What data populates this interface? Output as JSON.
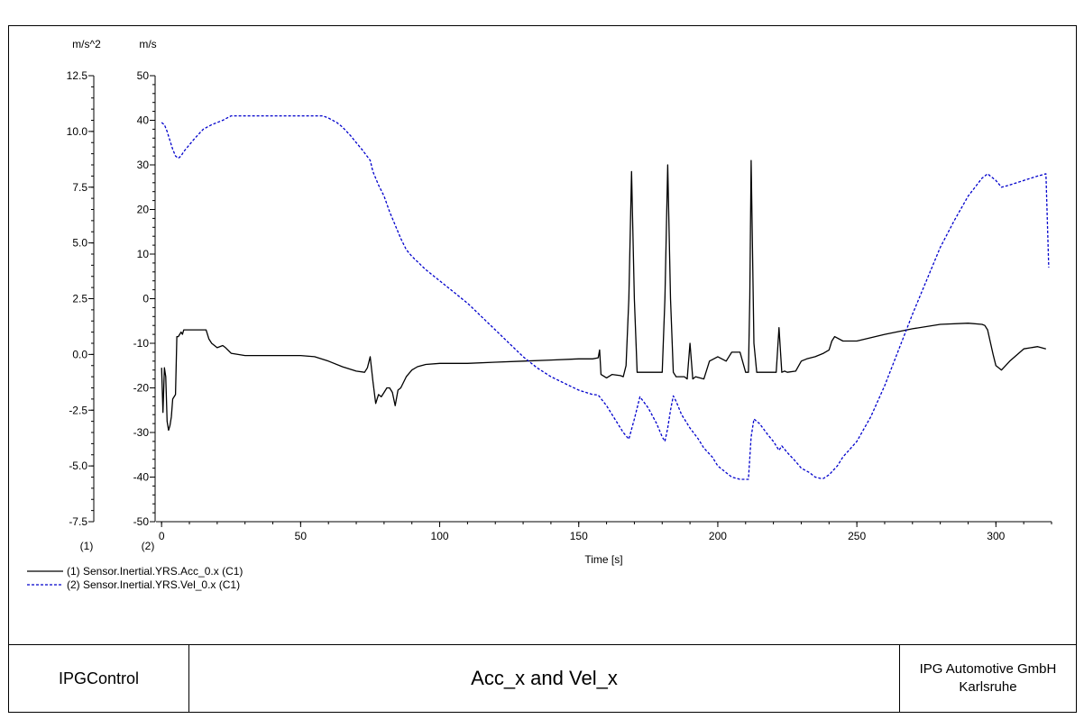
{
  "footer": {
    "app_name": "IPGControl",
    "title": "Acc_x and Vel_x",
    "company_line1": "IPG Automotive GmbH",
    "company_line2": "Karlsruhe"
  },
  "chart_data": {
    "type": "line",
    "title": "Acc_x and Vel_x",
    "xlabel": "Time [s]",
    "xlim": [
      -2,
      320
    ],
    "x_ticks": [
      0,
      50,
      100,
      150,
      200,
      250,
      300
    ],
    "y_axes": [
      {
        "id": "1",
        "axis_label": "(1)",
        "unit": "m/s^2",
        "ylim": [
          -7.5,
          12.5
        ],
        "ticks": [
          -7.5,
          -5.0,
          -2.5,
          0.0,
          2.5,
          5.0,
          7.5,
          10.0,
          12.5
        ],
        "tick_labels": [
          "-7.5",
          "-5.0",
          "-2.5",
          "0.0",
          "2.5",
          "5.0",
          "7.5",
          "10.0",
          "12.5"
        ]
      },
      {
        "id": "2",
        "axis_label": "(2)",
        "unit": "m/s",
        "ylim": [
          -50,
          50
        ],
        "ticks": [
          -50,
          -40,
          -30,
          -20,
          -10,
          0,
          10,
          20,
          30,
          40,
          50
        ],
        "tick_labels": [
          "-50",
          "-40",
          "-30",
          "-20",
          "-10",
          "0",
          "10",
          "20",
          "30",
          "40",
          "50"
        ]
      }
    ],
    "grid": false,
    "legend_position": "bottom-left",
    "series": [
      {
        "name": "(1) Sensor.Inertial.YRS.Acc_0.x (C1)",
        "axis": "1",
        "color": "#000000",
        "style": "solid",
        "x": [
          0,
          0.5,
          1,
          1.5,
          2,
          2.5,
          3,
          3.5,
          4,
          5,
          5.5,
          6,
          7,
          7.5,
          8,
          10,
          12,
          16,
          17,
          18,
          20,
          22,
          23,
          25,
          30,
          40,
          50,
          55,
          60,
          65,
          70,
          73,
          74,
          75,
          76,
          77,
          78,
          79,
          80,
          81,
          82,
          83,
          84,
          85,
          86,
          88,
          90,
          92,
          95,
          100,
          110,
          120,
          130,
          140,
          150,
          155,
          157,
          157.5,
          158,
          160,
          162,
          165,
          166,
          167,
          168,
          169,
          170,
          171,
          172,
          175,
          178,
          180,
          181,
          182,
          183,
          184,
          185,
          186,
          187,
          188,
          189,
          190,
          191,
          192,
          195,
          197,
          200,
          203,
          205,
          208,
          210,
          211,
          211.5,
          212,
          213,
          214,
          215,
          218,
          220,
          221,
          222,
          223,
          224,
          225,
          228,
          230,
          232,
          235,
          238,
          240,
          241,
          242,
          245,
          250,
          260,
          270,
          280,
          290,
          295,
          296,
          297,
          299,
          300,
          302,
          305,
          310,
          315,
          318
        ],
        "y": [
          -0.6,
          -2.6,
          -0.6,
          -1.0,
          -3.0,
          -3.4,
          -3.2,
          -2.8,
          -2.0,
          -1.8,
          0.8,
          0.8,
          1.0,
          0.9,
          1.1,
          1.1,
          1.1,
          1.1,
          0.7,
          0.5,
          0.3,
          0.4,
          0.3,
          0.05,
          -0.05,
          -0.05,
          -0.05,
          -0.1,
          -0.3,
          -0.55,
          -0.75,
          -0.8,
          -0.6,
          -0.1,
          -1.2,
          -2.2,
          -1.8,
          -1.9,
          -1.7,
          -1.5,
          -1.5,
          -1.7,
          -2.3,
          -1.6,
          -1.5,
          -1.0,
          -0.7,
          -0.55,
          -0.45,
          -0.4,
          -0.4,
          -0.35,
          -0.3,
          -0.25,
          -0.2,
          -0.2,
          -0.15,
          0.2,
          -0.9,
          -1.05,
          -0.9,
          -0.95,
          -1.0,
          -0.5,
          2.5,
          8.2,
          2.5,
          -0.8,
          -0.8,
          -0.8,
          -0.8,
          -0.8,
          2.5,
          8.5,
          2.5,
          -0.8,
          -1.0,
          -1.0,
          -1.0,
          -1.0,
          -1.1,
          0.5,
          -1.1,
          -1.0,
          -1.1,
          -0.3,
          -0.1,
          -0.3,
          0.1,
          0.1,
          -0.8,
          -0.8,
          2.5,
          8.7,
          0.5,
          -0.8,
          -0.8,
          -0.8,
          -0.8,
          -0.8,
          1.2,
          -0.8,
          -0.75,
          -0.8,
          -0.75,
          -0.3,
          -0.2,
          -0.1,
          0.05,
          0.2,
          0.6,
          0.8,
          0.6,
          0.6,
          0.9,
          1.15,
          1.35,
          1.4,
          1.35,
          1.3,
          1.1,
          0.0,
          -0.5,
          -0.7,
          -0.3,
          0.25,
          0.35,
          0.25
        ]
      },
      {
        "name": "(2) Sensor.Inertial.YRS.Vel_0.x (C1)",
        "axis": "2",
        "color": "#0000cc",
        "style": "dashed",
        "x": [
          0,
          1,
          2,
          3,
          4,
          5,
          6,
          7,
          8,
          10,
          12,
          15,
          18,
          20,
          22,
          25,
          30,
          40,
          50,
          55,
          58,
          60,
          63,
          65,
          68,
          70,
          72,
          75,
          76,
          78,
          80,
          82,
          84,
          86,
          88,
          90,
          95,
          100,
          105,
          110,
          115,
          120,
          125,
          130,
          135,
          140,
          145,
          150,
          155,
          157,
          160,
          163,
          166,
          168,
          170,
          172,
          175,
          178,
          180,
          181,
          182,
          183,
          184,
          185,
          187,
          190,
          193,
          195,
          198,
          200,
          203,
          205,
          208,
          210,
          211,
          212,
          213,
          215,
          218,
          220,
          222,
          223,
          225,
          228,
          230,
          233,
          235,
          237,
          238,
          240,
          243,
          245,
          250,
          255,
          260,
          265,
          270,
          275,
          280,
          285,
          290,
          295,
          297,
          299,
          300,
          302,
          305,
          310,
          315,
          318,
          319
        ],
        "y": [
          39.5,
          39,
          37.5,
          35.5,
          33.5,
          32.0,
          31.5,
          32.0,
          33.0,
          34.5,
          36.0,
          38.0,
          39.0,
          39.5,
          40.0,
          41.0,
          41.0,
          41.0,
          41.0,
          41.0,
          41.0,
          40.5,
          39.5,
          38.5,
          36.5,
          35.0,
          33.5,
          31.0,
          28.5,
          25.5,
          23.0,
          19.5,
          16.5,
          13.5,
          11.0,
          9.5,
          6.5,
          4.0,
          1.5,
          -1.0,
          -4.0,
          -7.0,
          -10.0,
          -13.0,
          -15.5,
          -17.5,
          -19.0,
          -20.5,
          -21.5,
          -21.6,
          -24.0,
          -27.0,
          -30.0,
          -31.5,
          -27.0,
          -22.0,
          -24.5,
          -28.0,
          -31.0,
          -32.0,
          -29.0,
          -25.0,
          -21.8,
          -23.0,
          -26.0,
          -29.0,
          -31.5,
          -33.5,
          -35.5,
          -37.5,
          -39.0,
          -40.0,
          -40.5,
          -40.5,
          -40.5,
          -31.0,
          -27.0,
          -28.0,
          -30.5,
          -32.0,
          -34.0,
          -33.0,
          -34.5,
          -36.5,
          -38.0,
          -39.0,
          -40.0,
          -40.3,
          -40.3,
          -39.5,
          -37.5,
          -35.5,
          -32.0,
          -26.5,
          -19.5,
          -11.5,
          -3.5,
          4.0,
          11.5,
          17.5,
          23.0,
          27.0,
          28.0,
          27.0,
          26.5,
          25.0,
          25.5,
          26.5,
          27.5,
          28.0,
          7.0
        ]
      }
    ]
  }
}
